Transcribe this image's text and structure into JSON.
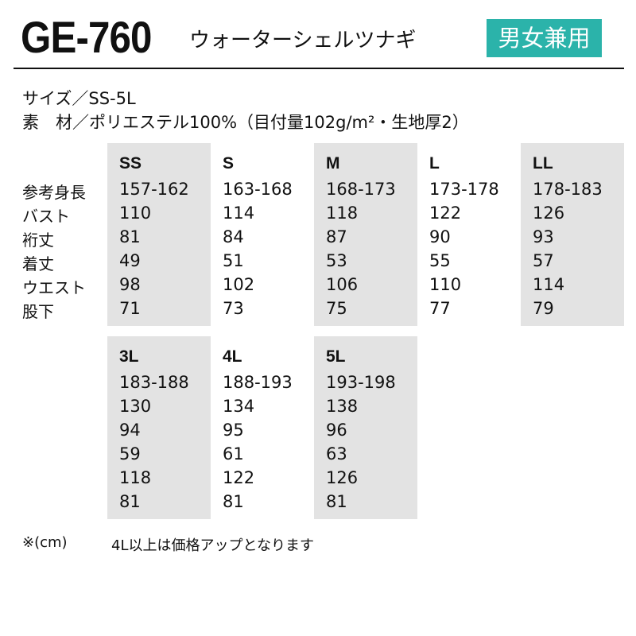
{
  "header": {
    "model": "GE-760",
    "product_name": "ウォーターシェルツナギ",
    "badge": "男女兼用",
    "badge_color": "#2bb3aa"
  },
  "specs": {
    "size": "サイズ／SS-5L",
    "material": "素　材／ポリエステル100%（目付量102g/m²・生地厚2）"
  },
  "row_labels": [
    "参考身長",
    "バスト",
    "裄丈",
    "着丈",
    "ウエスト",
    "股下"
  ],
  "blocks": [
    {
      "columns": [
        {
          "size": "SS",
          "values": [
            "157-162",
            "110",
            "81",
            "49",
            "98",
            "71"
          ]
        },
        {
          "size": "S",
          "values": [
            "163-168",
            "114",
            "84",
            "51",
            "102",
            "73"
          ]
        },
        {
          "size": "M",
          "values": [
            "168-173",
            "118",
            "87",
            "53",
            "106",
            "75"
          ]
        },
        {
          "size": "L",
          "values": [
            "173-178",
            "122",
            "90",
            "55",
            "110",
            "77"
          ]
        },
        {
          "size": "LL",
          "values": [
            "178-183",
            "126",
            "93",
            "57",
            "114",
            "79"
          ]
        }
      ]
    },
    {
      "columns": [
        {
          "size": "3L",
          "values": [
            "183-188",
            "130",
            "94",
            "59",
            "118",
            "81"
          ]
        },
        {
          "size": "4L",
          "values": [
            "188-193",
            "134",
            "95",
            "61",
            "122",
            "81"
          ]
        },
        {
          "size": "5L",
          "values": [
            "193-198",
            "138",
            "96",
            "63",
            "126",
            "81"
          ]
        }
      ]
    }
  ],
  "notes": {
    "unit": "※(cm)",
    "price": "4L以上は価格アップとなります"
  }
}
